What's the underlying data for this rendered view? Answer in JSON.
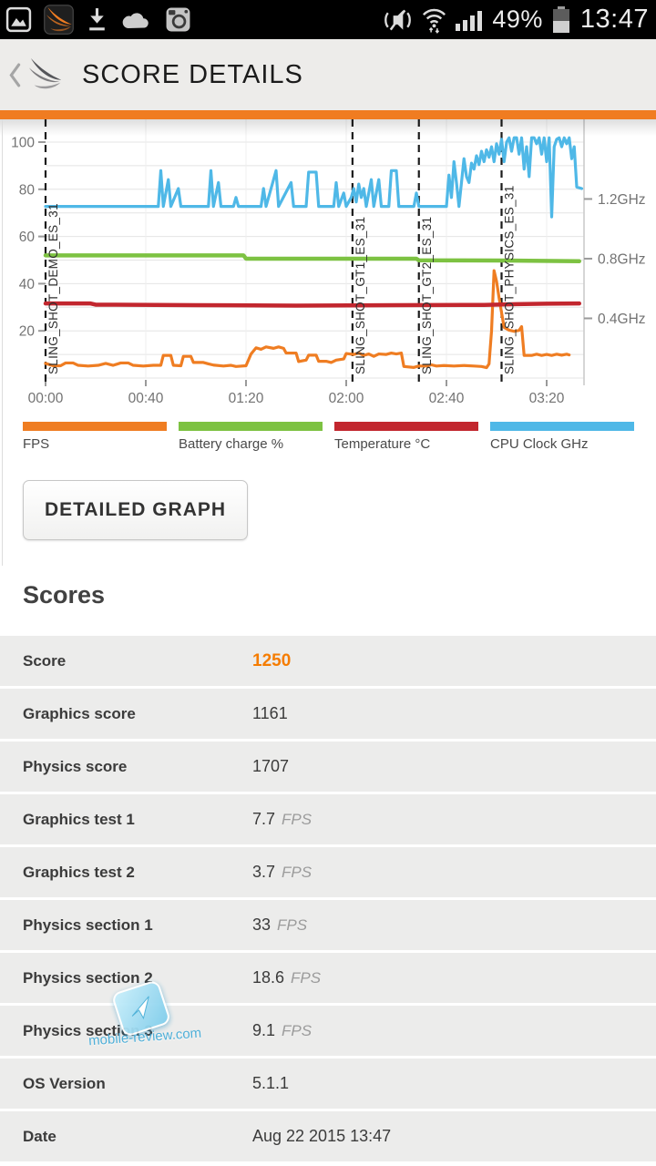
{
  "status_bar": {
    "battery_percent": "49%",
    "time": "13:47",
    "left_icons": [
      "gallery-icon",
      "3dmark-notification-icon",
      "download-icon",
      "cloud-icon",
      "instagram-icon"
    ],
    "right_icons": [
      "mute-vibrate-icon",
      "wifi-icon",
      "signal-strength-icon",
      "battery-icon"
    ]
  },
  "header": {
    "title": "SCORE DETAILS"
  },
  "accent_color": "#F07C21",
  "buttons": {
    "detailed_graph": "DETAILED GRAPH"
  },
  "chart_data": {
    "type": "line",
    "title": "",
    "x_axis": {
      "unit": "mm:ss",
      "ticks": [
        [
          0,
          "00:00"
        ],
        [
          40,
          "00:40"
        ],
        [
          80,
          "01:20"
        ],
        [
          120,
          "02:00"
        ],
        [
          160,
          "02:40"
        ],
        [
          200,
          "03:20"
        ]
      ],
      "range_seconds": [
        0,
        216
      ]
    },
    "y_left": {
      "ticks": [
        [
          20,
          "20"
        ],
        [
          40,
          "40"
        ],
        [
          60,
          "60"
        ],
        [
          80,
          "80"
        ],
        [
          100,
          "100"
        ]
      ],
      "range": [
        0,
        110
      ],
      "grid_step": 10
    },
    "y_right": {
      "ticks": [
        [
          0.4,
          "0.4GHz"
        ],
        [
          0.8,
          "0.8GHz"
        ],
        [
          1.2,
          "1.2GHz"
        ]
      ],
      "unit": "GHz"
    },
    "markers": [
      {
        "t": 0,
        "label": "SLING_SHOT_DEMO_ES_31"
      },
      {
        "t": 122.5,
        "label": "SLING_SHOT_GT1_ES_31"
      },
      {
        "t": 149,
        "label": "SLING_SHOT_GT2_ES_31"
      },
      {
        "t": 182,
        "label": "SLING_SHOT_PHYSICS_ES_31"
      }
    ],
    "series": [
      {
        "name": "FPS",
        "color": "#EF7D22",
        "axis": "left",
        "width": 3.2,
        "points": [
          [
            0,
            6.2
          ],
          [
            3,
            5.2
          ],
          [
            6,
            5.2
          ],
          [
            8,
            6.4
          ],
          [
            11,
            6.4
          ],
          [
            13,
            5.4
          ],
          [
            17,
            5.1
          ],
          [
            21,
            5.4
          ],
          [
            24,
            6.2
          ],
          [
            27,
            5.4
          ],
          [
            30,
            6.4
          ],
          [
            33,
            6.4
          ],
          [
            35,
            5.4
          ],
          [
            39,
            5.1
          ],
          [
            43,
            5.4
          ],
          [
            46,
            5.4
          ],
          [
            47,
            9.6
          ],
          [
            50,
            9.6
          ],
          [
            51,
            5.4
          ],
          [
            54,
            5.2
          ],
          [
            55,
            9.2
          ],
          [
            58,
            9.2
          ],
          [
            59,
            6.6
          ],
          [
            63,
            6.6
          ],
          [
            65,
            6
          ],
          [
            67,
            5.5
          ],
          [
            71,
            5.1
          ],
          [
            74,
            5.4
          ],
          [
            76,
            4.9
          ],
          [
            80,
            5.2
          ],
          [
            82,
            10.2
          ],
          [
            84,
            12.8
          ],
          [
            86,
            12.2
          ],
          [
            88,
            13.2
          ],
          [
            91,
            12.6
          ],
          [
            93,
            13.2
          ],
          [
            95,
            12.6
          ],
          [
            96,
            10.6
          ],
          [
            100,
            10.6
          ],
          [
            101,
            7
          ],
          [
            104,
            7.6
          ],
          [
            105,
            9.7
          ],
          [
            108,
            9.7
          ],
          [
            109,
            7.1
          ],
          [
            112,
            7.1
          ],
          [
            114,
            6.6
          ],
          [
            116,
            7.6
          ],
          [
            119,
            8.1
          ],
          [
            120,
            10.4
          ],
          [
            123,
            10
          ],
          [
            125,
            10.6
          ],
          [
            127,
            9.6
          ],
          [
            129,
            10.2
          ],
          [
            131,
            9.2
          ],
          [
            133,
            10.2
          ],
          [
            136,
            10
          ],
          [
            138,
            10.6
          ],
          [
            140,
            10.2
          ],
          [
            142,
            10.6
          ],
          [
            143,
            4.9
          ],
          [
            147,
            4.5
          ],
          [
            149,
            5.1
          ],
          [
            152,
            5.1
          ],
          [
            154,
            5.6
          ],
          [
            156,
            5.1
          ],
          [
            159,
            5.3
          ],
          [
            163,
            5.1
          ],
          [
            167,
            5.3
          ],
          [
            171,
            5.1
          ],
          [
            174,
            4.9
          ],
          [
            176,
            4.4
          ],
          [
            177,
            6
          ],
          [
            178,
            20
          ],
          [
            179,
            45.5
          ],
          [
            180,
            41
          ],
          [
            181,
            34
          ],
          [
            183,
            21.5
          ],
          [
            185,
            20.3
          ],
          [
            187,
            19.8
          ],
          [
            189,
            20.2
          ],
          [
            190,
            21.8
          ],
          [
            191,
            9.6
          ],
          [
            194,
            9.6
          ],
          [
            196,
            10.1
          ],
          [
            198,
            9.6
          ],
          [
            200,
            10
          ],
          [
            202,
            9.6
          ],
          [
            204,
            10.1
          ],
          [
            206,
            9.7
          ],
          [
            208,
            10.1
          ],
          [
            209,
            9.8
          ]
        ]
      },
      {
        "name": "Battery charge %",
        "color": "#7DC242",
        "axis": "left",
        "width": 4.5,
        "points": [
          [
            0,
            52
          ],
          [
            79,
            52
          ],
          [
            80,
            50.6
          ],
          [
            148,
            50.6
          ],
          [
            149,
            49.9
          ],
          [
            183,
            49.8
          ],
          [
            213,
            49.5
          ]
        ]
      },
      {
        "name": "Temperature °C",
        "color": "#C2262E",
        "axis": "left",
        "width": 4.5,
        "points": [
          [
            0,
            31.6
          ],
          [
            18,
            31.6
          ],
          [
            20,
            31.1
          ],
          [
            60,
            30.9
          ],
          [
            100,
            30.7
          ],
          [
            140,
            30.9
          ],
          [
            175,
            31
          ],
          [
            188,
            31.3
          ],
          [
            200,
            31.5
          ],
          [
            213,
            31.6
          ]
        ]
      },
      {
        "name": "CPU Clock GHz",
        "color": "#4FB8E7",
        "axis": "right",
        "width": 3.2,
        "points": [
          [
            0,
            1.15
          ],
          [
            45,
            1.15
          ],
          [
            46,
            1.39
          ],
          [
            47,
            1.15
          ],
          [
            49,
            1.33
          ],
          [
            50,
            1.15
          ],
          [
            53,
            1.27
          ],
          [
            54,
            1.15
          ],
          [
            65,
            1.15
          ],
          [
            66,
            1.39
          ],
          [
            67,
            1.15
          ],
          [
            69,
            1.31
          ],
          [
            70,
            1.15
          ],
          [
            75,
            1.15
          ],
          [
            76,
            1.21
          ],
          [
            77,
            1.15
          ],
          [
            86,
            1.15
          ],
          [
            87,
            1.27
          ],
          [
            88,
            1.15
          ],
          [
            92,
            1.39
          ],
          [
            93,
            1.15
          ],
          [
            98,
            1.31
          ],
          [
            99,
            1.15
          ],
          [
            104,
            1.15
          ],
          [
            105,
            1.38
          ],
          [
            108,
            1.38
          ],
          [
            109,
            1.15
          ],
          [
            115,
            1.15
          ],
          [
            116,
            1.31
          ],
          [
            117,
            1.15
          ],
          [
            119,
            1.24
          ],
          [
            120,
            1.15
          ],
          [
            122,
            1.21
          ],
          [
            123,
            1.27
          ],
          [
            124,
            1.18
          ],
          [
            125,
            1.3
          ],
          [
            126,
            1.21
          ],
          [
            127,
            1.27
          ],
          [
            128,
            1.15
          ],
          [
            130,
            1.33
          ],
          [
            131,
            1.15
          ],
          [
            133,
            1.33
          ],
          [
            134,
            1.15
          ],
          [
            137,
            1.15
          ],
          [
            138,
            1.39
          ],
          [
            140,
            1.39
          ],
          [
            141,
            1.15
          ],
          [
            147,
            1.15
          ],
          [
            148,
            1.24
          ],
          [
            149,
            1.15
          ],
          [
            160,
            1.15
          ],
          [
            161,
            1.36
          ],
          [
            162,
            1.21
          ],
          [
            163,
            1.45
          ],
          [
            164,
            1.31
          ],
          [
            165,
            1.15
          ],
          [
            167,
            1.47
          ],
          [
            168,
            1.35
          ],
          [
            169,
            1.31
          ],
          [
            170,
            1.44
          ],
          [
            171,
            1.4
          ],
          [
            172,
            1.49
          ],
          [
            173,
            1.43
          ],
          [
            174,
            1.52
          ],
          [
            175,
            1.45
          ],
          [
            176,
            1.53
          ],
          [
            177,
            1.48
          ],
          [
            178,
            1.55
          ],
          [
            179,
            1.45
          ],
          [
            180,
            1.57
          ],
          [
            181,
            1.5
          ],
          [
            182,
            1.6
          ],
          [
            183,
            1.45
          ],
          [
            184,
            1.58
          ],
          [
            185,
            1.61
          ],
          [
            186,
            1.52
          ],
          [
            187,
            1.61
          ],
          [
            188,
            1.61
          ],
          [
            189,
            1.5
          ],
          [
            190,
            1.61
          ],
          [
            191,
            1.4
          ],
          [
            192,
            1.55
          ],
          [
            193,
            1.35
          ],
          [
            194,
            1.61
          ],
          [
            195,
            1.61
          ],
          [
            196,
            1.57
          ],
          [
            197,
            1.61
          ],
          [
            198,
            1.5
          ],
          [
            199,
            1.61
          ],
          [
            200,
            1.45
          ],
          [
            201,
            1.61
          ],
          [
            202,
            1.08
          ],
          [
            203,
            1.55
          ],
          [
            204,
            1.6
          ],
          [
            205,
            1.61
          ],
          [
            206,
            1.55
          ],
          [
            207,
            1.61
          ],
          [
            208,
            1.57
          ],
          [
            209,
            1.61
          ],
          [
            210,
            1.47
          ],
          [
            211,
            1.55
          ],
          [
            212,
            1.28
          ],
          [
            214,
            1.27
          ]
        ]
      }
    ],
    "legend_position": "bottom",
    "grid": true
  },
  "scores": {
    "heading": "Scores",
    "rows": [
      {
        "label": "Score",
        "value": "1250",
        "unit": "",
        "highlight": true
      },
      {
        "label": "Graphics score",
        "value": "1161",
        "unit": "",
        "highlight": false
      },
      {
        "label": "Physics score",
        "value": "1707",
        "unit": "",
        "highlight": false
      },
      {
        "label": "Graphics test 1",
        "value": "7.7",
        "unit": "FPS",
        "highlight": false
      },
      {
        "label": "Graphics test 2",
        "value": "3.7",
        "unit": "FPS",
        "highlight": false
      },
      {
        "label": "Physics section 1",
        "value": "33",
        "unit": "FPS",
        "highlight": false
      },
      {
        "label": "Physics section 2",
        "value": "18.6",
        "unit": "FPS",
        "highlight": false
      },
      {
        "label": "Physics section 3",
        "value": "9.1",
        "unit": "FPS",
        "highlight": false
      },
      {
        "label": "OS Version",
        "value": "5.1.1",
        "unit": "",
        "highlight": false
      },
      {
        "label": "Date",
        "value": "Aug 22 2015 13:47",
        "unit": "",
        "highlight": false
      }
    ]
  },
  "watermark": {
    "text": "mobile-review.com"
  }
}
